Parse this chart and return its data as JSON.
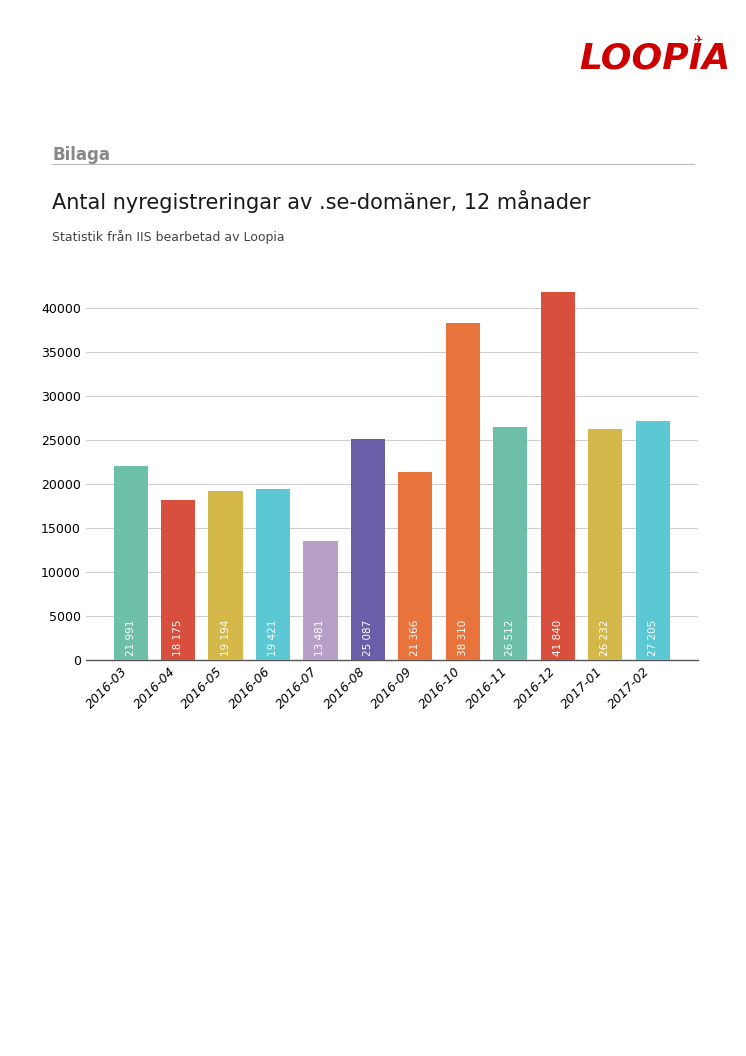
{
  "title": "Antal nyregistreringar av .se-domäner, 12 månader",
  "subtitle": "Statistik från IIS bearbetad av Loopia",
  "header": "Bilaga",
  "categories": [
    "2016-03",
    "2016-04",
    "2016-05",
    "2016-06",
    "2016-07",
    "2016-08",
    "2016-09",
    "2016-10",
    "2016-11",
    "2016-12",
    "2017-01",
    "2017-02"
  ],
  "values": [
    21991,
    18175,
    19194,
    19421,
    13481,
    25087,
    21366,
    38310,
    26512,
    41840,
    26232,
    27205
  ],
  "bar_colors": [
    "#6dbfa8",
    "#d94f3d",
    "#d4b84a",
    "#5bc8d4",
    "#b89fc8",
    "#6b5ea8",
    "#e8743b",
    "#e8743b",
    "#6dbfa8",
    "#d94f3d",
    "#d4b84a",
    "#5bc8d4"
  ],
  "value_label_color": "white",
  "ylim": [
    0,
    45000
  ],
  "yticks": [
    0,
    5000,
    10000,
    15000,
    20000,
    25000,
    30000,
    35000,
    40000
  ],
  "grid_color": "#cccccc",
  "background_color": "#ffffff",
  "axis_line_color": "#555555",
  "title_fontsize": 15,
  "subtitle_fontsize": 9,
  "header_fontsize": 12,
  "tick_fontsize": 9,
  "value_fontsize": 7.5,
  "loopia_color": "#cc0000",
  "header_color": "#888888",
  "separator_color": "#bbbbbb",
  "logo_text": "LOOPIA",
  "logo_symbol": "★"
}
